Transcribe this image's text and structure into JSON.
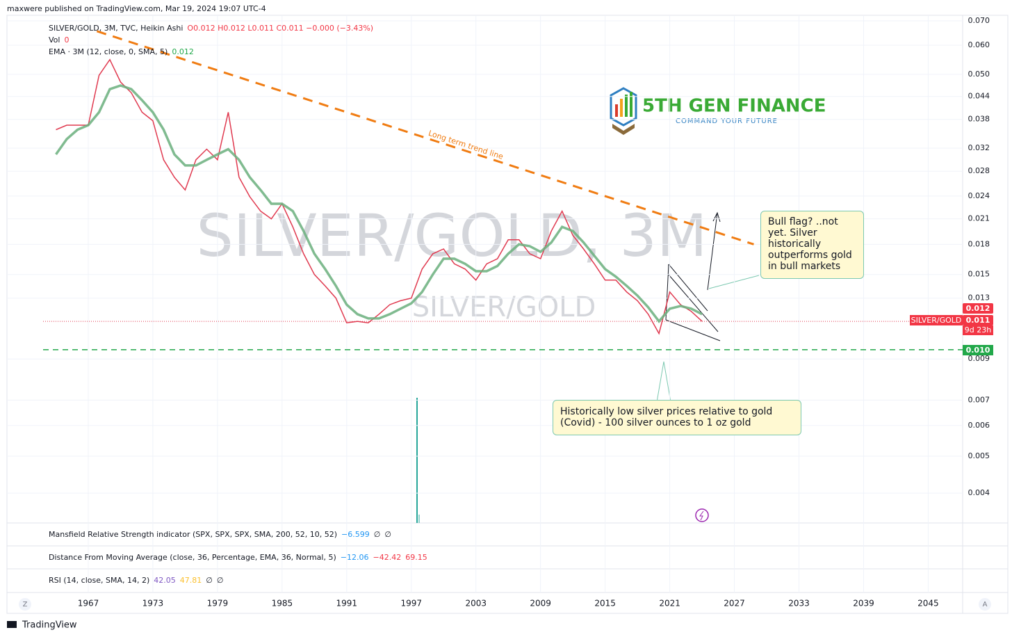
{
  "header": {
    "publisher": "maxwere published on TradingView.com, Mar 19, 2024 19:07 UTC-4"
  },
  "legend": {
    "symbol": "SILVER/GOLD, 3M, TVC, Heikin Ashi",
    "ohlc": "O0.012  H0.012  L0.011  C0.011  −0.000 (−3.43%)",
    "vol_label": "Vol",
    "vol_value": "0",
    "ema_label": "EMA · 3M (12, close, 0, SMA, 5)",
    "ema_value": "0.012"
  },
  "watermark": {
    "main": "SILVER/GOLD, 3M",
    "sub": "SILVER/GOLD"
  },
  "logo": {
    "name": "5TH GEN FINANCE",
    "tagline": "COMMAND YOUR FUTURE"
  },
  "chart_data": {
    "type": "line",
    "log_scale": true,
    "grid": true,
    "x": [
      1964,
      1965,
      1966,
      1967,
      1968,
      1969,
      1970,
      1971,
      1972,
      1973,
      1974,
      1975,
      1976,
      1977,
      1978,
      1979,
      1980,
      1981,
      1982,
      1983,
      1984,
      1985,
      1986,
      1987,
      1988,
      1989,
      1990,
      1991,
      1992,
      1993,
      1994,
      1995,
      1996,
      1997,
      1998,
      1999,
      2000,
      2001,
      2002,
      2003,
      2004,
      2005,
      2006,
      2007,
      2008,
      2009,
      2010,
      2011,
      2012,
      2013,
      2014,
      2015,
      2016,
      2017,
      2018,
      2019,
      2020,
      2021,
      2022,
      2023,
      2024
    ],
    "series": [
      {
        "name": "SILVER/GOLD",
        "color": "#e0394f",
        "values": [
          0.036,
          0.037,
          0.037,
          0.037,
          0.05,
          0.055,
          0.048,
          0.045,
          0.04,
          0.038,
          0.03,
          0.027,
          0.025,
          0.03,
          0.032,
          0.03,
          0.04,
          0.027,
          0.024,
          0.022,
          0.021,
          0.023,
          0.02,
          0.017,
          0.015,
          0.014,
          0.013,
          0.0112,
          0.0113,
          0.0112,
          0.0118,
          0.0125,
          0.0128,
          0.013,
          0.0155,
          0.017,
          0.0175,
          0.016,
          0.0155,
          0.0145,
          0.016,
          0.0165,
          0.0185,
          0.0185,
          0.017,
          0.0165,
          0.0195,
          0.022,
          0.019,
          0.0175,
          0.016,
          0.0145,
          0.0145,
          0.0135,
          0.0128,
          0.0118,
          0.0105,
          0.0135,
          0.0125,
          0.012,
          0.0113
        ]
      },
      {
        "name": "EMA",
        "color": "#6aaf7c",
        "values": [
          0.031,
          0.034,
          0.036,
          0.037,
          0.04,
          0.046,
          0.047,
          0.046,
          0.043,
          0.04,
          0.036,
          0.031,
          0.029,
          0.029,
          0.03,
          0.031,
          0.032,
          0.03,
          0.027,
          0.025,
          0.023,
          0.023,
          0.022,
          0.0195,
          0.017,
          0.0155,
          0.014,
          0.0125,
          0.0118,
          0.0115,
          0.0115,
          0.0118,
          0.0122,
          0.0126,
          0.0135,
          0.015,
          0.0165,
          0.0165,
          0.016,
          0.0153,
          0.0153,
          0.0158,
          0.017,
          0.018,
          0.0178,
          0.0172,
          0.0182,
          0.02,
          0.0195,
          0.0182,
          0.0168,
          0.0155,
          0.0148,
          0.014,
          0.0132,
          0.0123,
          0.0113,
          0.0122,
          0.0124,
          0.0122,
          0.0118
        ]
      }
    ],
    "xlim": [
      1959.45,
      2048.2
    ],
    "xticks": [
      1967,
      1973,
      1979,
      1985,
      1991,
      1997,
      2003,
      2009,
      2015,
      2021,
      2027,
      2033,
      2039,
      2045
    ],
    "ylim": [
      0.00334,
      0.0695
    ],
    "yticks": [
      {
        "value": 0.0695,
        "label": "0.070"
      },
      {
        "value": 0.06,
        "label": "0.060"
      },
      {
        "value": 0.0503,
        "label": "0.050"
      },
      {
        "value": 0.044,
        "label": "0.044"
      },
      {
        "value": 0.0383,
        "label": "0.038"
      },
      {
        "value": 0.0322,
        "label": "0.032"
      },
      {
        "value": 0.028,
        "label": "0.028"
      },
      {
        "value": 0.0241,
        "label": "0.024"
      },
      {
        "value": 0.021,
        "label": "0.021"
      },
      {
        "value": 0.018,
        "label": "0.018"
      },
      {
        "value": 0.015,
        "label": "0.015"
      },
      {
        "value": 0.013,
        "label": "0.013"
      },
      {
        "value": 0.009,
        "label": "0.009"
      },
      {
        "value": 0.00702,
        "label": "0.007"
      },
      {
        "value": 0.00602,
        "label": "0.006"
      },
      {
        "value": 0.005,
        "label": "0.005"
      },
      {
        "value": 0.004,
        "label": "0.004"
      }
    ],
    "trend_line": {
      "label": "Long term trend line",
      "color": "#f07c12",
      "x": [
        1967.8,
        2028.8
      ],
      "y": [
        0.0653,
        0.018
      ]
    },
    "support": {
      "value": 0.00952,
      "label": "0.010",
      "color": "#22a84a"
    },
    "price_line": {
      "value": 0.0113,
      "color": "#e0394f"
    },
    "badges": [
      {
        "value": 0.0122,
        "label": "0.012"
      },
      {
        "value": 0.0113,
        "label": "0.011"
      }
    ],
    "badge_symbol": "SILVER/GOLD",
    "countdown": "9d 23h"
  },
  "annotations": [
    "Bull flag?  ..not yet.  Silver historically outperforms gold in bull markets",
    "Historically low silver prices relative to gold (Covid) - 100 silver ounces to 1 oz gold"
  ],
  "indicators": [
    {
      "name": "Mansfield Relative Strength indicator (SPX, SPX, SPX, SMA, 200, 52, 10, 52)",
      "values": [
        "−6.599",
        "∅",
        "∅"
      ],
      "colors": [
        "#2196f3",
        "#131722",
        "#131722"
      ]
    },
    {
      "name": "Distance From Moving Average (close, 36, Percentage, EMA, 36, Normal, 5)",
      "values": [
        "−12.06",
        "−42.42",
        "69.15"
      ],
      "colors": [
        "#2196f3",
        "#f23645",
        "#f23645"
      ]
    },
    {
      "name": "RSI (14, close, SMA, 14, 2)",
      "values": [
        "42.05",
        "47.81",
        "∅",
        "∅"
      ],
      "colors": [
        "#7e57c2",
        "#fbc02d",
        "#131722",
        "#131722"
      ]
    }
  ],
  "footer": {
    "brand": "TradingView",
    "left_button": "Z",
    "right_button": "A"
  }
}
